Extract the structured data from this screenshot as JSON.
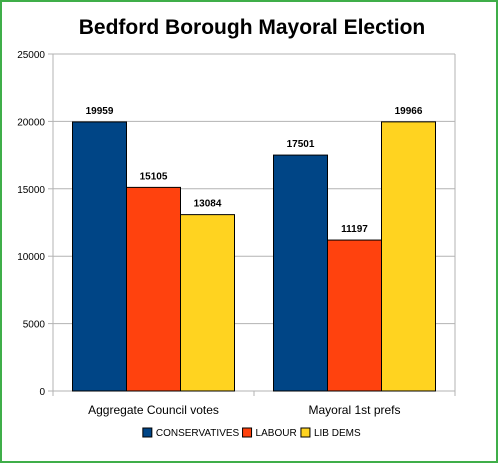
{
  "chart_data": {
    "type": "bar",
    "title": "Bedford Borough Mayoral Election",
    "categories": [
      "Aggregate Council votes",
      "Mayoral  1st prefs"
    ],
    "series": [
      {
        "name": "CONSERVATIVES",
        "color": "#004586",
        "values": [
          19959,
          17501
        ]
      },
      {
        "name": "LABOUR",
        "color": "#ff420e",
        "values": [
          15105,
          11197
        ]
      },
      {
        "name": "LIB DEMS",
        "color": "#ffd320",
        "values": [
          13084,
          19966
        ]
      }
    ],
    "ylim": [
      0,
      25000
    ],
    "yticks": [
      0,
      5000,
      10000,
      15000,
      20000,
      25000
    ],
    "grid": true,
    "legend": "bottom"
  }
}
